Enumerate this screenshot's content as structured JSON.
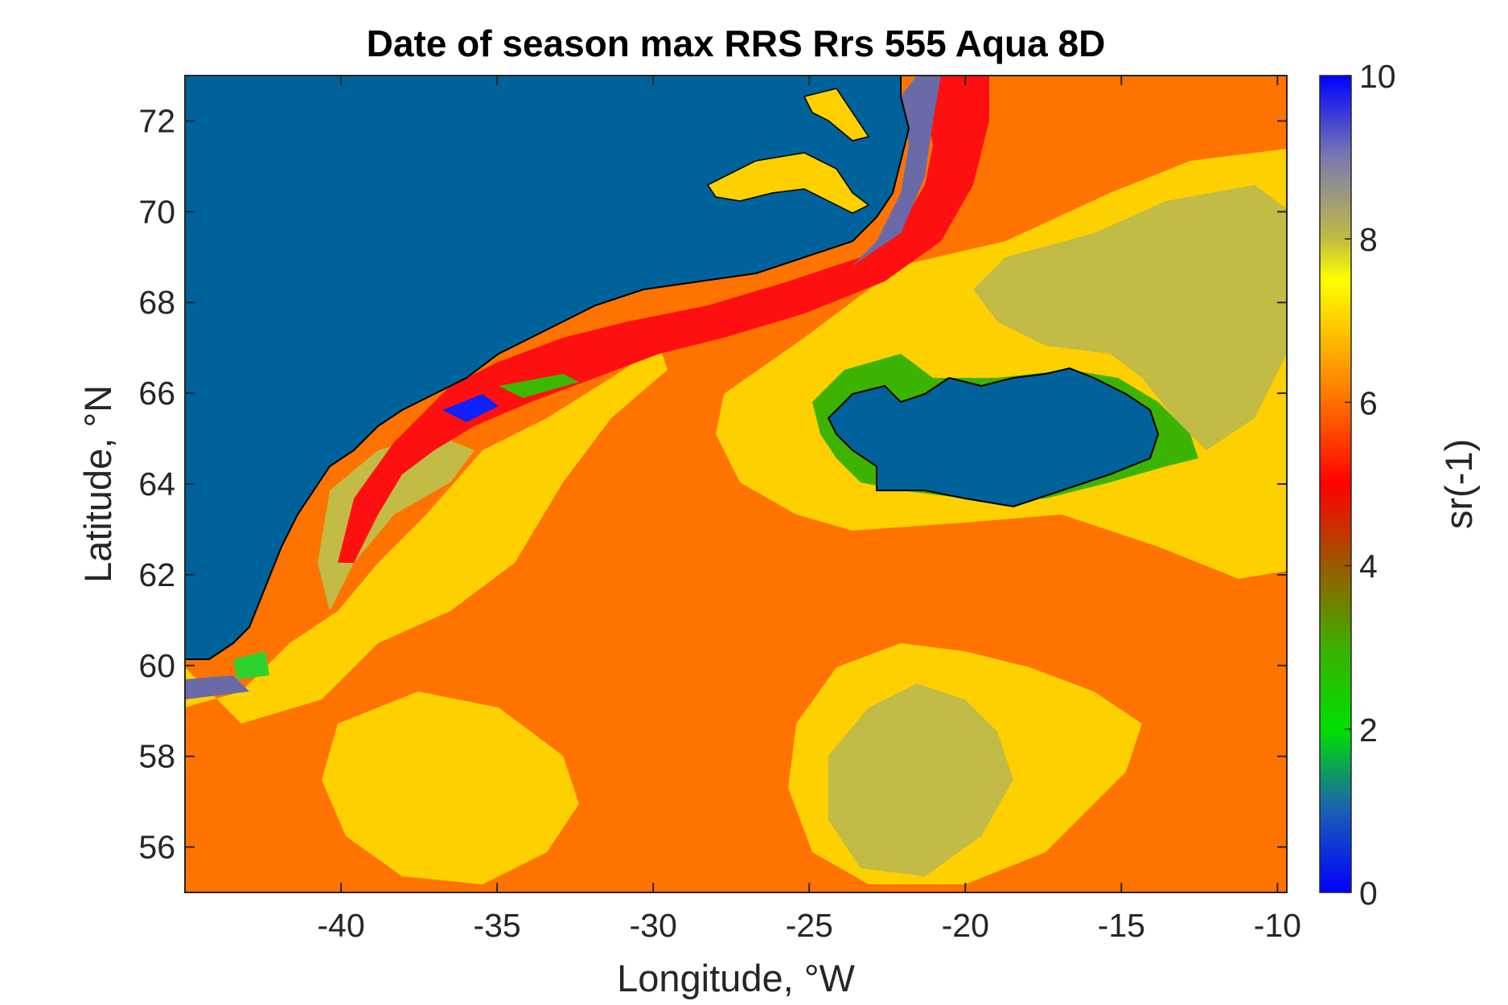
{
  "chart_data": {
    "type": "heatmap",
    "title": "Date of season max RRS Rrs 555 Aqua 8D",
    "xlabel": "Longitude, °W",
    "ylabel": "Latitude, °N",
    "xlim": [
      -45,
      -9.7
    ],
    "ylim": [
      55,
      73
    ],
    "xticks": [
      -40,
      -35,
      -30,
      -25,
      -20,
      -15,
      -10
    ],
    "yticks": [
      56,
      58,
      60,
      62,
      64,
      66,
      68,
      70,
      72
    ],
    "colorbar": {
      "label": "sr(-1)",
      "range": [
        0,
        10
      ],
      "ticks": [
        0,
        2,
        4,
        6,
        8,
        10
      ],
      "stops": [
        {
          "value": 0,
          "color": "#0000ff"
        },
        {
          "value": 1,
          "color": "#1a5fb4"
        },
        {
          "value": 2,
          "color": "#00e000"
        },
        {
          "value": 3,
          "color": "#3cb000"
        },
        {
          "value": 4,
          "color": "#9a5a00"
        },
        {
          "value": 5,
          "color": "#ff0000"
        },
        {
          "value": 6,
          "color": "#ff7000"
        },
        {
          "value": 7,
          "color": "#ffd000"
        },
        {
          "value": 7.5,
          "color": "#ffff00"
        },
        {
          "value": 8,
          "color": "#c0bc40"
        },
        {
          "value": 9,
          "color": "#7a7ab0"
        },
        {
          "value": 10,
          "color": "#0000ff"
        }
      ]
    },
    "land_color": "#00629a",
    "dominant_value_open_ocean": 6,
    "regions": [
      {
        "name": "Greenland",
        "value_class": "land"
      },
      {
        "name": "Iceland",
        "value_class": "land"
      }
    ]
  }
}
